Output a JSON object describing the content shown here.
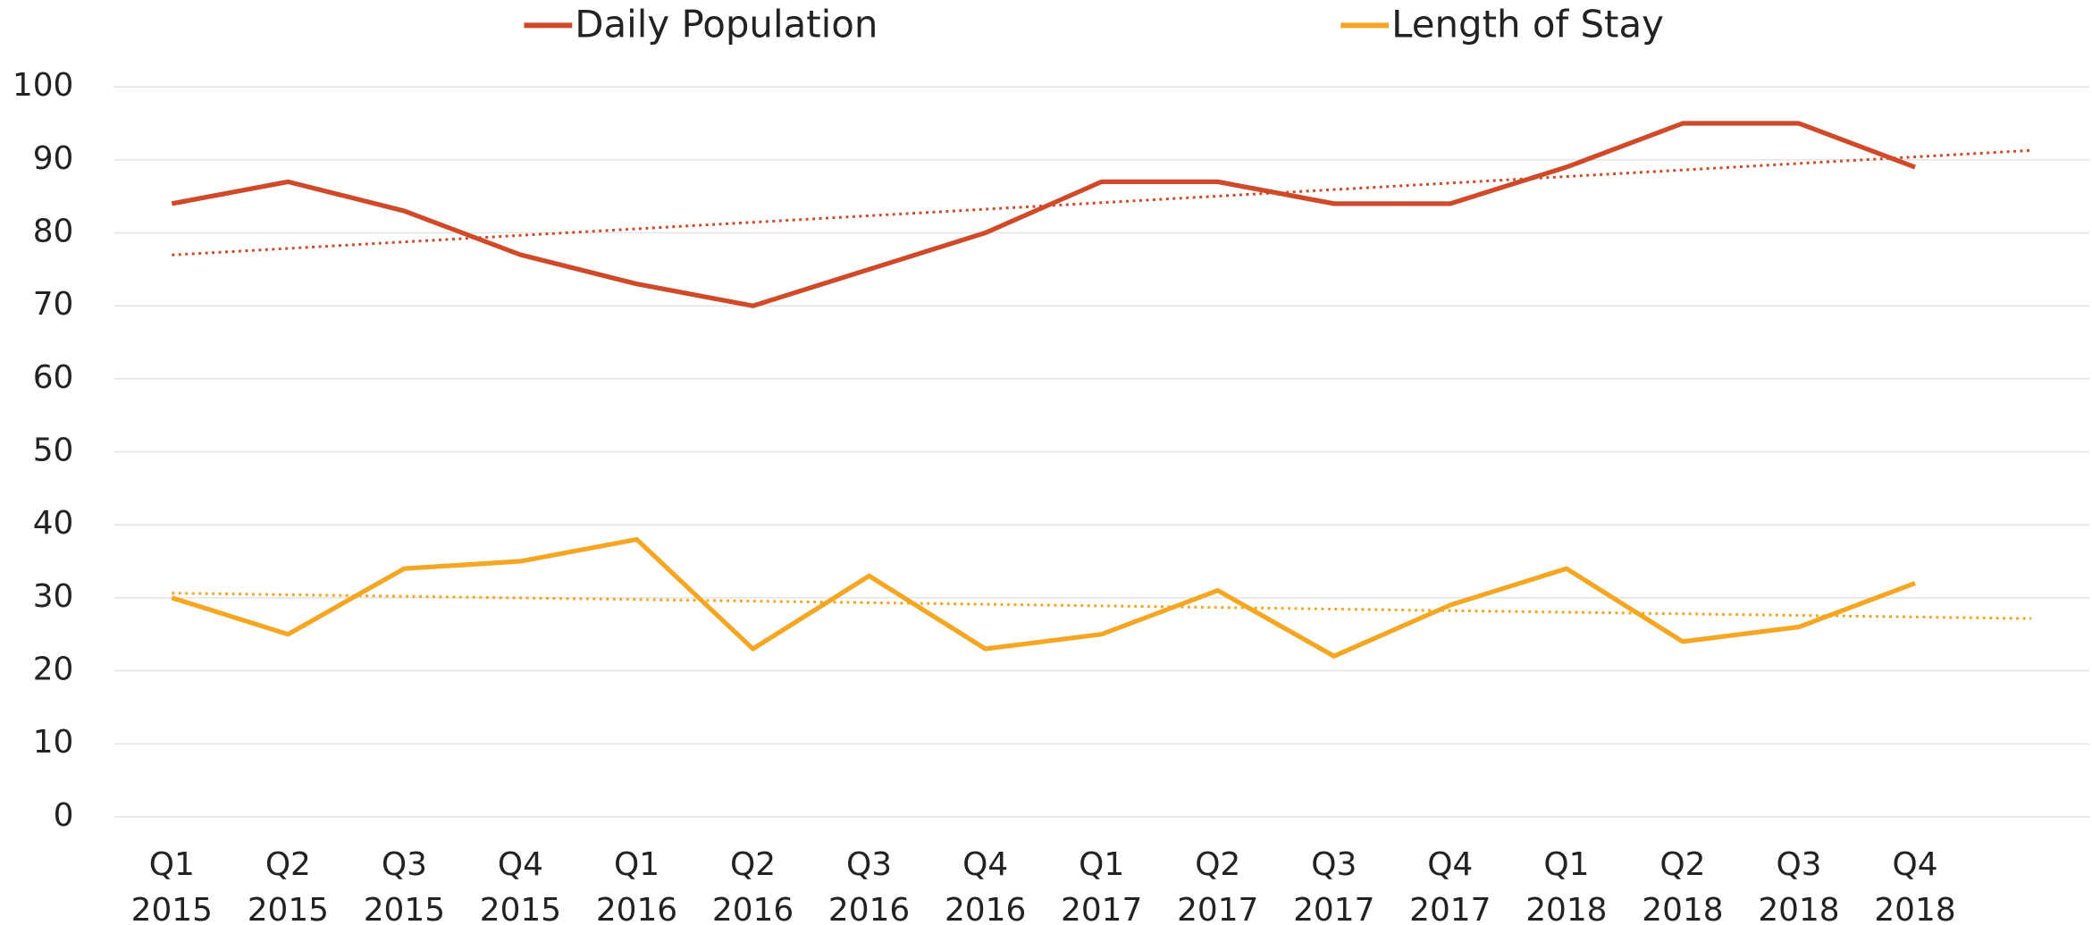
{
  "chart_data": {
    "type": "line",
    "categories": [
      [
        "Q1",
        "2015"
      ],
      [
        "Q2",
        "2015"
      ],
      [
        "Q3",
        "2015"
      ],
      [
        "Q4",
        "2015"
      ],
      [
        "Q1",
        "2016"
      ],
      [
        "Q2",
        "2016"
      ],
      [
        "Q3",
        "2016"
      ],
      [
        "Q4",
        "2016"
      ],
      [
        "Q1",
        "2017"
      ],
      [
        "Q2",
        "2017"
      ],
      [
        "Q3",
        "2017"
      ],
      [
        "Q4",
        "2017"
      ],
      [
        "Q1",
        "2018"
      ],
      [
        "Q2",
        "2018"
      ],
      [
        "Q3",
        "2018"
      ],
      [
        "Q4",
        "2018"
      ]
    ],
    "series": [
      {
        "name": "Daily Population",
        "color": "#d04a2a",
        "values": [
          84,
          87,
          83,
          77,
          73,
          70,
          75,
          80,
          87,
          87,
          84,
          84,
          89,
          95,
          95,
          89
        ]
      },
      {
        "name": "Length of Stay",
        "color": "#f5a623",
        "values": [
          30,
          25,
          34,
          35,
          38,
          23,
          33,
          23,
          25,
          31,
          22,
          29,
          34,
          24,
          26,
          32
        ]
      }
    ],
    "ylim": [
      0,
      100
    ],
    "yticks": [
      0,
      10,
      20,
      30,
      40,
      50,
      60,
      70,
      80,
      90,
      100
    ],
    "grid": true,
    "legend": "top",
    "trendline": true,
    "trendline_forward": 1
  }
}
